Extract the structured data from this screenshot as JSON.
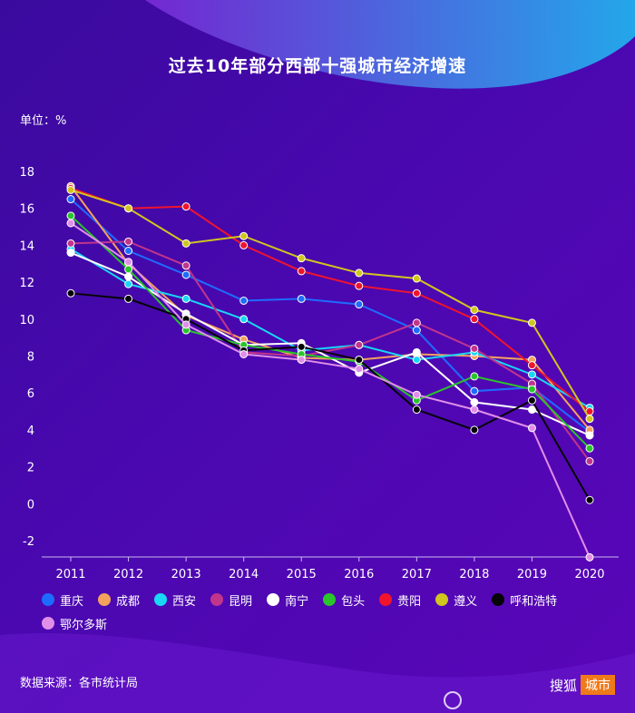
{
  "title": "过去10年部分西部十强城市经济增速",
  "unit": "单位：%",
  "source": "数据来源：各市统计局",
  "logo": {
    "text": "搜狐",
    "tag": "城市"
  },
  "chart_data": {
    "type": "line",
    "x": [
      "2011",
      "2012",
      "2013",
      "2014",
      "2015",
      "2016",
      "2017",
      "2018",
      "2019",
      "2020"
    ],
    "ylim": [
      -2,
      18
    ],
    "yticks": [
      -2,
      0,
      2,
      4,
      6,
      8,
      10,
      12,
      14,
      16,
      18
    ],
    "grid": false,
    "legend": "bottom",
    "series": [
      {
        "name": "重庆",
        "color": "#1e6cff",
        "values": [
          16.5,
          13.7,
          12.4,
          11.0,
          11.1,
          10.8,
          9.4,
          6.1,
          6.3,
          3.9
        ]
      },
      {
        "name": "成都",
        "color": "#f4a15d",
        "values": [
          17.2,
          13.0,
          10.2,
          8.9,
          7.9,
          7.8,
          8.1,
          8.0,
          7.8,
          4.0
        ]
      },
      {
        "name": "西安",
        "color": "#19d7f5",
        "values": [
          13.8,
          11.9,
          11.1,
          10.0,
          8.3,
          8.6,
          7.8,
          8.2,
          7.0,
          5.2
        ]
      },
      {
        "name": "昆明",
        "color": "#c1358a",
        "values": [
          14.1,
          14.2,
          12.9,
          8.2,
          8.0,
          8.6,
          9.8,
          8.4,
          6.5,
          2.3
        ]
      },
      {
        "name": "南宁",
        "color": "#ffffff",
        "values": [
          13.6,
          12.3,
          10.3,
          8.6,
          8.7,
          7.1,
          8.2,
          5.5,
          5.1,
          3.7
        ]
      },
      {
        "name": "包头",
        "color": "#2ac52a",
        "values": [
          15.6,
          12.7,
          9.4,
          8.6,
          8.1,
          7.7,
          5.6,
          6.9,
          6.2,
          3.0
        ]
      },
      {
        "name": "贵阳",
        "color": "#f0142d",
        "values": [
          17.1,
          16.0,
          16.1,
          14.0,
          12.6,
          11.8,
          11.4,
          10.0,
          7.5,
          5.0
        ]
      },
      {
        "name": "遵义",
        "color": "#d1c51f",
        "values": [
          17.0,
          16.0,
          14.1,
          14.5,
          13.3,
          12.5,
          12.2,
          10.5,
          9.8,
          4.6
        ]
      },
      {
        "name": "呼和浩特",
        "color": "#050505",
        "values": [
          11.4,
          11.1,
          10.0,
          8.3,
          8.5,
          7.8,
          5.1,
          4.0,
          5.6,
          0.2
        ]
      },
      {
        "name": "鄂尔多斯",
        "color": "#e08ee8",
        "values": [
          15.2,
          13.1,
          9.7,
          8.1,
          7.8,
          7.3,
          5.9,
          5.1,
          4.1,
          -2.9
        ]
      }
    ]
  }
}
